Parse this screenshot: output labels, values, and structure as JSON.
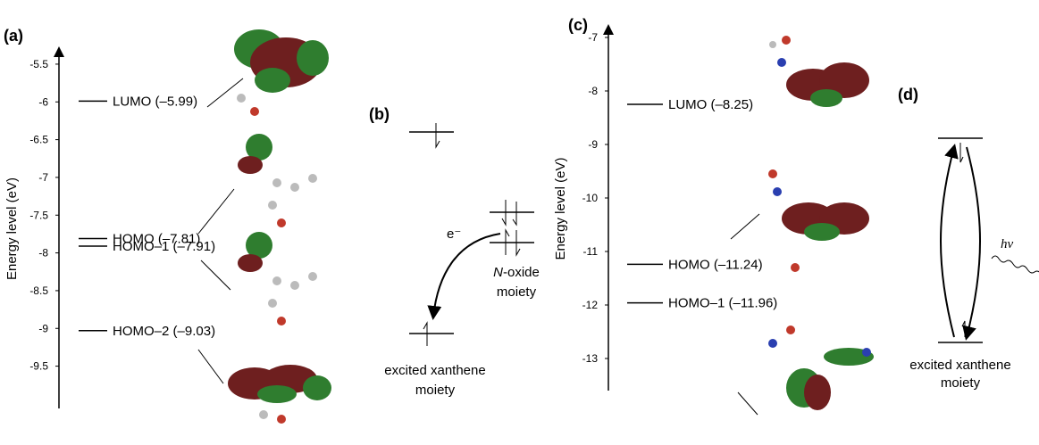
{
  "chart_data": [
    {
      "type": "energy_level",
      "panel": "(a)",
      "ylabel": "Energy level (eV)",
      "ylim": [
        -10.06,
        -5.3
      ],
      "yticks": [
        -5.5,
        -6,
        -6.5,
        -7,
        -7.5,
        -8,
        -8.5,
        -9,
        -9.5
      ],
      "categories": [
        "LUMO",
        "HOMO",
        "HOMO–1",
        "HOMO–2"
      ],
      "values": [
        -5.99,
        -7.81,
        -7.91,
        -9.03
      ],
      "value_labels": [
        "–5.99",
        "–7.81",
        "–7.91",
        "–9.03"
      ],
      "color": "#000000"
    },
    {
      "type": "energy_level",
      "panel": "(c)",
      "ylabel": "Energy level (eV)",
      "ylim": [
        -13.6,
        -6.8
      ],
      "yticks": [
        -7,
        -8,
        -9,
        -10,
        -11,
        -12,
        -13
      ],
      "categories": [
        "LUMO",
        "HOMO",
        "HOMO–1"
      ],
      "values": [
        -8.25,
        -11.24,
        -11.96
      ],
      "value_labels": [
        "–8.25",
        "–11.24",
        "–11.96"
      ],
      "color": "#000000"
    }
  ],
  "panels": {
    "b": {
      "label": "(b)",
      "electron": "e⁻",
      "donor": [
        "N",
        "-oxide",
        "moiety"
      ],
      "acceptor": [
        "excited xanthene",
        "moiety"
      ]
    },
    "d": {
      "label": "(d)",
      "photon": "hν",
      "acceptor": [
        "excited xanthene",
        "moiety"
      ]
    }
  }
}
